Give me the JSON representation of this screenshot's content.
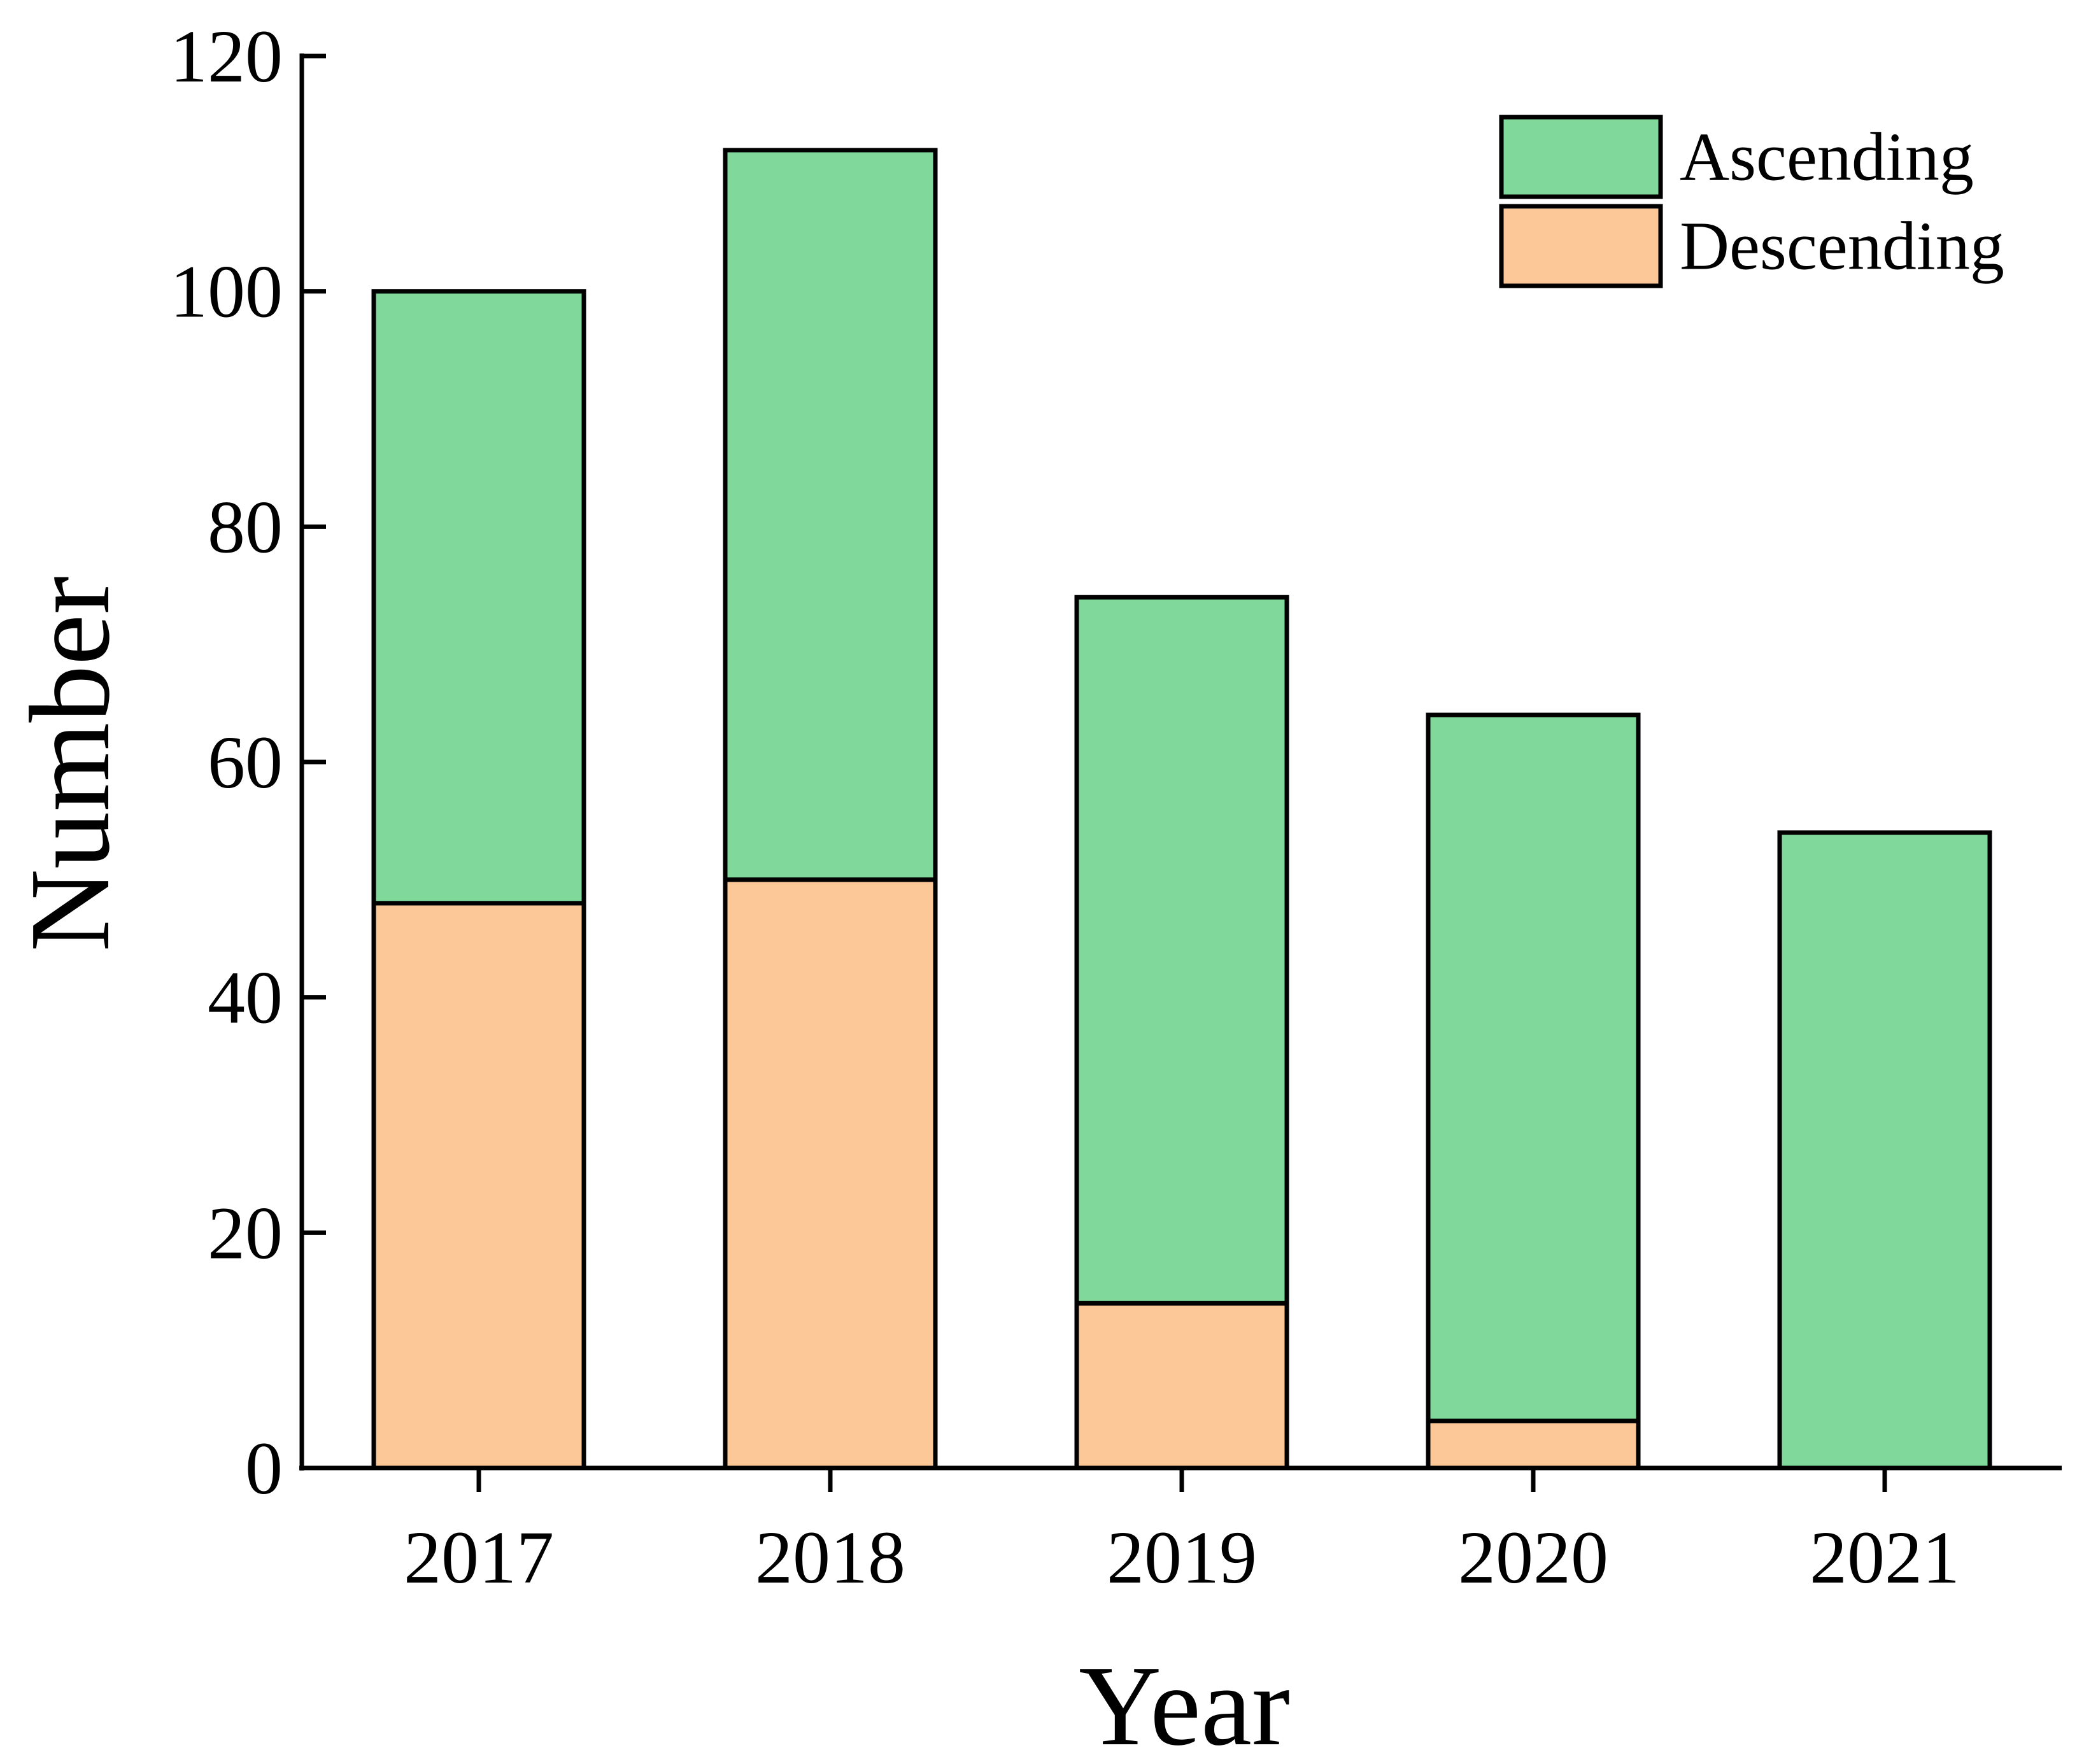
{
  "chart_data": {
    "type": "bar",
    "stacked": true,
    "title": "",
    "xlabel": "Year",
    "ylabel": "Number",
    "categories": [
      "2017",
      "2018",
      "2019",
      "2020",
      "2021"
    ],
    "series": [
      {
        "name": "Descending",
        "values": [
          48,
          50,
          14,
          4,
          0
        ],
        "color": "#FDC897"
      },
      {
        "name": "Ascending",
        "values": [
          52,
          62,
          60,
          60,
          54
        ],
        "color": "#80D99A"
      }
    ],
    "ylim": [
      0,
      120
    ],
    "yticks": [
      "0",
      "20",
      "40",
      "60",
      "80",
      "100",
      "120"
    ],
    "legend": {
      "position": "top-right",
      "order": [
        "Ascending",
        "Descending"
      ]
    },
    "grid": false
  }
}
